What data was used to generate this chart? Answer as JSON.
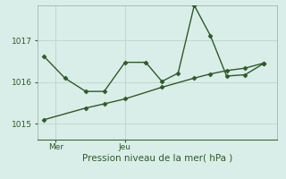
{
  "title": "",
  "xlabel": "Pression niveau de la mer( hPa )",
  "bg_color": "#daeee9",
  "grid_color": "#c0d8d0",
  "line_color": "#2d5a27",
  "yticks": [
    1015,
    1016,
    1017
  ],
  "ylim": [
    1014.62,
    1017.85
  ],
  "xlim": [
    -0.2,
    10.2
  ],
  "xtick_positions": [
    0.6,
    3.6
  ],
  "xtick_labels": [
    "Mer",
    "Jeu"
  ],
  "vline_x": [
    0.6,
    3.6
  ],
  "series1_x": [
    0.1,
    1.0,
    1.9,
    2.7,
    3.6,
    4.5,
    5.2,
    5.9,
    6.6,
    7.3,
    8.0,
    8.8,
    9.6
  ],
  "series1_y": [
    1016.62,
    1016.1,
    1015.78,
    1015.78,
    1016.48,
    1016.48,
    1016.02,
    1016.22,
    1017.85,
    1017.12,
    1016.15,
    1016.18,
    1016.45
  ],
  "series2_x": [
    0.1,
    1.9,
    2.7,
    3.6,
    5.2,
    6.6,
    7.3,
    8.0,
    8.8,
    9.6
  ],
  "series2_y": [
    1015.1,
    1015.38,
    1015.48,
    1015.6,
    1015.88,
    1016.1,
    1016.2,
    1016.28,
    1016.34,
    1016.46
  ],
  "marker_size": 2.5,
  "line_width": 1.0,
  "font_size": 7.5,
  "tick_font_size": 6.5
}
